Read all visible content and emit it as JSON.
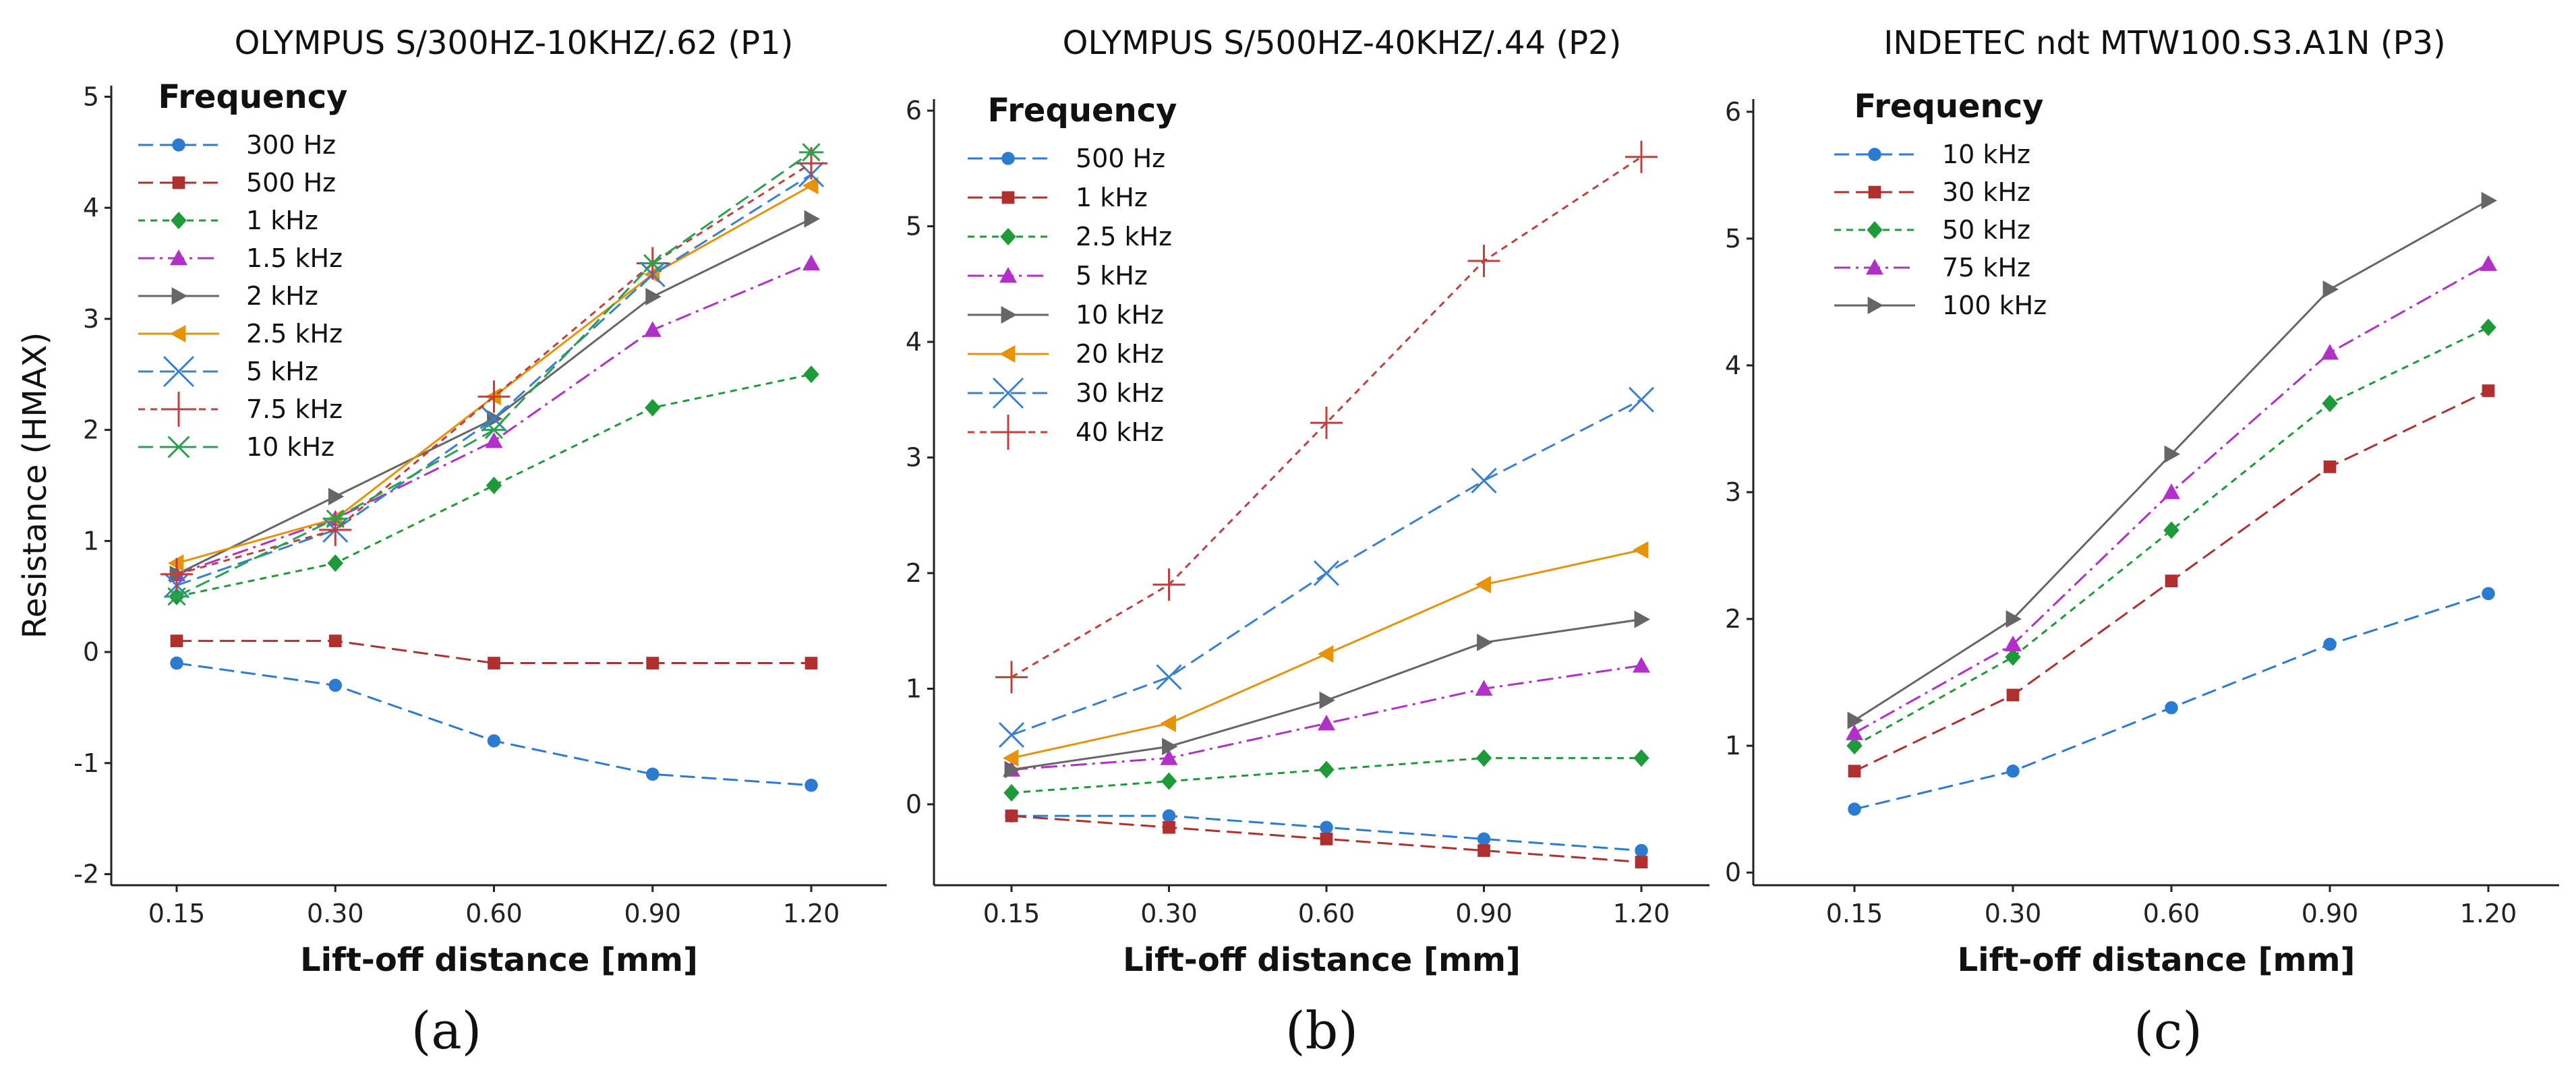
{
  "chart_data": [
    {
      "type": "line",
      "panel_label": "(a)",
      "title": "OLYMPUS S/300HZ-10KHZ/.62 (P1)",
      "xlabel": "Lift-off distance [mm]",
      "ylabel": "Resistance (HMAX)",
      "categories": [
        "0.15",
        "0.30",
        "0.60",
        "0.90",
        "1.20"
      ],
      "ylim": [
        -2.1,
        5.1
      ],
      "yticks": [
        -2,
        -1,
        0,
        1,
        2,
        3,
        4,
        5
      ],
      "legend_title": "Frequency",
      "legend_position": "top-left",
      "series": [
        {
          "name": "300 Hz",
          "values": [
            -0.1,
            -0.3,
            -0.8,
            -1.1,
            -1.2
          ],
          "color": "#2b7bd0",
          "marker": "circle",
          "dash": "long"
        },
        {
          "name": "500 Hz",
          "values": [
            0.1,
            0.1,
            -0.1,
            -0.1,
            -0.1
          ],
          "color": "#b03030",
          "marker": "square",
          "dash": "long"
        },
        {
          "name": "1 kHz",
          "values": [
            0.5,
            0.8,
            1.5,
            2.2,
            2.5
          ],
          "color": "#1e9a3a",
          "marker": "diamond",
          "dash": "short"
        },
        {
          "name": "1.5 kHz",
          "values": [
            0.7,
            1.2,
            1.9,
            2.9,
            3.5
          ],
          "color": "#b030c8",
          "marker": "triangle-up",
          "dash": "dashdot"
        },
        {
          "name": "2 kHz",
          "values": [
            0.7,
            1.4,
            2.1,
            3.2,
            3.9
          ],
          "color": "#666666",
          "marker": "triangle-right",
          "dash": "solid"
        },
        {
          "name": "2.5 kHz",
          "values": [
            0.8,
            1.2,
            2.3,
            3.4,
            4.2
          ],
          "color": "#e6930a",
          "marker": "triangle-left",
          "dash": "solid"
        },
        {
          "name": "5 kHz",
          "values": [
            0.6,
            1.1,
            2.1,
            3.4,
            4.3
          ],
          "color": "#3a7fd0",
          "marker": "x",
          "dash": "long"
        },
        {
          "name": "7.5 kHz",
          "values": [
            0.7,
            1.1,
            2.3,
            3.5,
            4.4
          ],
          "color": "#c04040",
          "marker": "plus",
          "dash": "short"
        },
        {
          "name": "10 kHz",
          "values": [
            0.5,
            1.2,
            2.0,
            3.5,
            4.5
          ],
          "color": "#2aa050",
          "marker": "star",
          "dash": "long"
        }
      ]
    },
    {
      "type": "line",
      "panel_label": "(b)",
      "title": "OLYMPUS S/500HZ-40KHZ/.44 (P2)",
      "xlabel": "Lift-off distance [mm]",
      "ylabel": "",
      "categories": [
        "0.15",
        "0.30",
        "0.60",
        "0.90",
        "1.20"
      ],
      "ylim": [
        -0.7,
        6.1
      ],
      "yticks": [
        0,
        1,
        2,
        3,
        4,
        5,
        6
      ],
      "legend_title": "Frequency",
      "legend_position": "top-left",
      "series": [
        {
          "name": "500 Hz",
          "values": [
            -0.1,
            -0.1,
            -0.2,
            -0.3,
            -0.4
          ],
          "color": "#2b7bd0",
          "marker": "circle",
          "dash": "long"
        },
        {
          "name": "1 kHz",
          "values": [
            -0.1,
            -0.2,
            -0.3,
            -0.4,
            -0.5
          ],
          "color": "#b03030",
          "marker": "square",
          "dash": "long"
        },
        {
          "name": "2.5 kHz",
          "values": [
            0.1,
            0.2,
            0.3,
            0.4,
            0.4
          ],
          "color": "#1e9a3a",
          "marker": "diamond",
          "dash": "short"
        },
        {
          "name": "5 kHz",
          "values": [
            0.3,
            0.4,
            0.7,
            1.0,
            1.2
          ],
          "color": "#b030c8",
          "marker": "triangle-up",
          "dash": "dashdot"
        },
        {
          "name": "10 kHz",
          "values": [
            0.3,
            0.5,
            0.9,
            1.4,
            1.6
          ],
          "color": "#666666",
          "marker": "triangle-right",
          "dash": "solid"
        },
        {
          "name": "20 kHz",
          "values": [
            0.4,
            0.7,
            1.3,
            1.9,
            2.2
          ],
          "color": "#e6930a",
          "marker": "triangle-left",
          "dash": "solid"
        },
        {
          "name": "30 kHz",
          "values": [
            0.6,
            1.1,
            2.0,
            2.8,
            3.5
          ],
          "color": "#3a7fd0",
          "marker": "x",
          "dash": "long"
        },
        {
          "name": "40 kHz",
          "values": [
            1.1,
            1.9,
            3.3,
            4.7,
            5.6
          ],
          "color": "#c04040",
          "marker": "plus",
          "dash": "short"
        }
      ]
    },
    {
      "type": "line",
      "panel_label": "(c)",
      "title": "INDETEC ndt MTW100.S3.A1N (P3)",
      "xlabel": "Lift-off distance [mm]",
      "ylabel": "",
      "categories": [
        "0.15",
        "0.30",
        "0.60",
        "0.90",
        "1.20"
      ],
      "ylim": [
        -0.1,
        6.1
      ],
      "yticks": [
        0,
        1,
        2,
        3,
        4,
        5,
        6
      ],
      "legend_title": "Frequency",
      "legend_position": "top-left",
      "series": [
        {
          "name": "10 kHz",
          "values": [
            0.5,
            0.8,
            1.3,
            1.8,
            2.2
          ],
          "color": "#2b7bd0",
          "marker": "circle",
          "dash": "long"
        },
        {
          "name": "30 kHz",
          "values": [
            0.8,
            1.4,
            2.3,
            3.2,
            3.8
          ],
          "color": "#b03030",
          "marker": "square",
          "dash": "long"
        },
        {
          "name": "50 kHz",
          "values": [
            1.0,
            1.7,
            2.7,
            3.7,
            4.3
          ],
          "color": "#1e9a3a",
          "marker": "diamond",
          "dash": "short"
        },
        {
          "name": "75 kHz",
          "values": [
            1.1,
            1.8,
            3.0,
            4.1,
            4.8
          ],
          "color": "#b030c8",
          "marker": "triangle-up",
          "dash": "dashdot"
        },
        {
          "name": "100 kHz",
          "values": [
            1.2,
            2.0,
            3.3,
            4.6,
            5.3
          ],
          "color": "#666666",
          "marker": "triangle-right",
          "dash": "solid"
        }
      ]
    }
  ]
}
